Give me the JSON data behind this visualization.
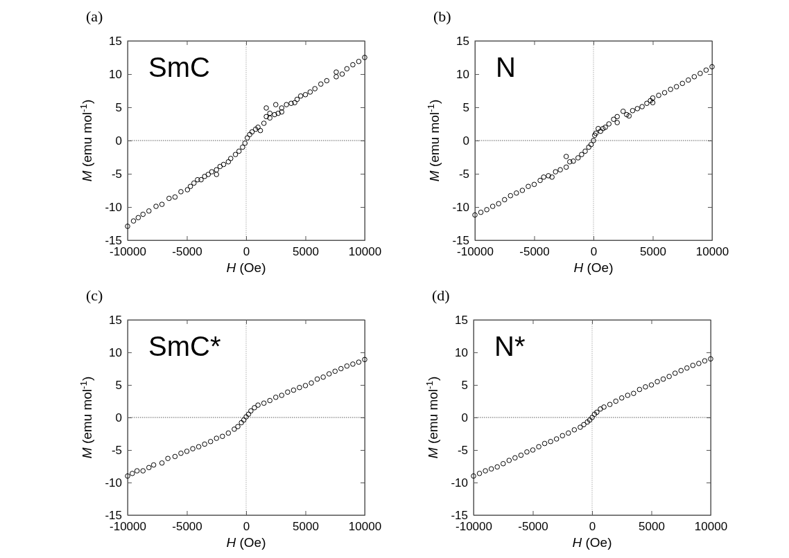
{
  "chart_data": [
    {
      "type": "scatter",
      "title": "(a)",
      "annotations": [
        "SmC"
      ],
      "xlabel": "H (Oe)",
      "ylabel": "M (emu mol$^{-1}$)",
      "xlim": [
        -10000,
        10000
      ],
      "ylim": [
        -15,
        15
      ],
      "xticks": [
        -10000,
        -5000,
        0,
        5000,
        10000
      ],
      "yticks": [
        -15,
        -10,
        -5,
        0,
        5,
        10,
        15
      ],
      "marker": "circle",
      "grid": false,
      "ref_lines": [
        {
          "axis": "x",
          "value": 0,
          "line_style": "dotted",
          "color": "#999999"
        },
        {
          "axis": "y",
          "value": 0,
          "line_style": "dotted",
          "color": "#333333"
        }
      ],
      "series": [
        {
          "color": "#000000",
          "x": [
            -10000,
            -9500,
            -9100,
            -8700,
            -8200,
            -7600,
            -7100,
            -6500,
            -6000,
            -5500,
            -4950,
            -4700,
            -4400,
            -4100,
            -3800,
            -3500,
            -3200,
            -2900,
            -2500,
            -2500,
            -2200,
            -1900,
            -1500,
            -1300,
            -900,
            -600,
            -300,
            -100,
            100,
            300,
            500,
            800,
            1000,
            1200,
            1500,
            1700,
            1700,
            2000,
            2000,
            2400,
            2500,
            2700,
            3000,
            3000,
            3400,
            3800,
            4100,
            4300,
            4600,
            5000,
            5400,
            5800,
            6300,
            6800,
            7600,
            7600,
            8100,
            8500,
            9000,
            9500,
            10000
          ],
          "values": [
            -12.9,
            -12.1,
            -11.6,
            -11.1,
            -10.6,
            -9.9,
            -9.6,
            -8.7,
            -8.5,
            -7.7,
            -7.4,
            -6.9,
            -6.4,
            -5.9,
            -5.9,
            -5.4,
            -5.1,
            -4.7,
            -4.4,
            -5.1,
            -3.9,
            -3.6,
            -3.2,
            -2.7,
            -2.1,
            -1.6,
            -1.0,
            -0.4,
            0.4,
            0.9,
            1.3,
            1.7,
            2.0,
            1.5,
            2.6,
            3.6,
            4.9,
            3.4,
            4.1,
            3.9,
            5.4,
            4.1,
            4.9,
            4.3,
            5.4,
            5.6,
            5.7,
            6.2,
            6.7,
            6.9,
            7.3,
            7.8,
            8.5,
            9.0,
            9.6,
            10.3,
            10.0,
            10.8,
            11.4,
            11.9,
            12.5
          ]
        }
      ]
    },
    {
      "type": "scatter",
      "title": "(b)",
      "annotations": [
        "N"
      ],
      "xlabel": "H (Oe)",
      "ylabel": "M (emu mol$^{-1}$)",
      "xlim": [
        -10000,
        10000
      ],
      "ylim": [
        -15,
        15
      ],
      "xticks": [
        -10000,
        -5000,
        0,
        5000,
        10000
      ],
      "yticks": [
        -15,
        -10,
        -5,
        0,
        5,
        10,
        15
      ],
      "marker": "circle",
      "grid": false,
      "ref_lines": [
        {
          "axis": "x",
          "value": 0,
          "line_style": "dotted",
          "color": "#999999"
        },
        {
          "axis": "y",
          "value": 0,
          "line_style": "dotted",
          "color": "#333333"
        }
      ],
      "series": [
        {
          "color": "#000000",
          "x": [
            -10000,
            -9500,
            -9000,
            -8500,
            -8000,
            -7500,
            -7000,
            -6500,
            -6000,
            -5500,
            -5000,
            -4500,
            -4200,
            -3800,
            -3500,
            -3200,
            -2800,
            -2300,
            -2300,
            -2000,
            -1700,
            -1300,
            -1000,
            -700,
            -400,
            -200,
            0,
            100,
            200,
            400,
            600,
            800,
            1000,
            1300,
            1700,
            2000,
            2000,
            2500,
            2800,
            3000,
            3300,
            3700,
            4100,
            4500,
            4800,
            5000,
            5000,
            5500,
            6000,
            6500,
            7000,
            7500,
            8000,
            8500,
            9000,
            9500,
            10000
          ],
          "values": [
            -11.2,
            -10.8,
            -10.4,
            -9.9,
            -9.5,
            -8.9,
            -8.3,
            -7.9,
            -7.5,
            -6.9,
            -6.6,
            -6.0,
            -5.5,
            -5.3,
            -5.5,
            -4.7,
            -4.4,
            -4.0,
            -2.4,
            -3.2,
            -3.1,
            -2.6,
            -2.1,
            -1.6,
            -1.0,
            -0.6,
            0,
            0.8,
            1.1,
            1.8,
            1.4,
            1.8,
            2.0,
            2.5,
            3.2,
            2.7,
            3.6,
            4.4,
            3.9,
            3.7,
            4.5,
            4.8,
            5.1,
            5.6,
            6.0,
            5.7,
            6.4,
            6.8,
            7.2,
            7.7,
            8.1,
            8.6,
            9.1,
            9.6,
            10.1,
            10.6,
            11.1
          ]
        }
      ]
    },
    {
      "type": "scatter",
      "title": "(c)",
      "annotations": [
        "SmC*"
      ],
      "xlabel": "H (Oe)",
      "ylabel": "M (emu mol$^{-1}$)",
      "xlim": [
        -10000,
        10000
      ],
      "ylim": [
        -15,
        15
      ],
      "xticks": [
        -10000,
        -5000,
        0,
        5000,
        10000
      ],
      "yticks": [
        -15,
        -10,
        -5,
        0,
        5,
        10,
        15
      ],
      "marker": "circle",
      "grid": false,
      "ref_lines": [
        {
          "axis": "x",
          "value": 0,
          "line_style": "dotted",
          "color": "#999999"
        },
        {
          "axis": "y",
          "value": 0,
          "line_style": "dotted",
          "color": "#333333"
        }
      ],
      "series": [
        {
          "color": "#000000",
          "x": [
            -10000,
            -9600,
            -9200,
            -8700,
            -8200,
            -7800,
            -7100,
            -6600,
            -6000,
            -5500,
            -5000,
            -4500,
            -4000,
            -3500,
            -3000,
            -2500,
            -2000,
            -1500,
            -1000,
            -700,
            -400,
            -200,
            0,
            200,
            400,
            700,
            1000,
            1500,
            2000,
            2500,
            3000,
            3500,
            4000,
            4500,
            5000,
            5500,
            6000,
            6500,
            7000,
            7500,
            8000,
            8500,
            9000,
            9500,
            10000
          ],
          "values": [
            -9.0,
            -8.6,
            -8.2,
            -8.2,
            -7.7,
            -7.3,
            -7.0,
            -6.3,
            -6.0,
            -5.5,
            -5.2,
            -4.8,
            -4.5,
            -4.1,
            -3.7,
            -3.2,
            -2.9,
            -2.4,
            -1.8,
            -1.4,
            -0.8,
            -0.4,
            0.1,
            0.5,
            1.0,
            1.5,
            1.9,
            2.2,
            2.6,
            3.1,
            3.4,
            3.9,
            4.2,
            4.6,
            4.9,
            5.3,
            5.9,
            6.2,
            6.7,
            7.1,
            7.5,
            7.9,
            8.2,
            8.5,
            8.9
          ]
        }
      ]
    },
    {
      "type": "scatter",
      "title": "(d)",
      "annotations": [
        "N*"
      ],
      "xlabel": "H (Oe)",
      "ylabel": "M (emu mol$^{-1}$)",
      "xlim": [
        -10000,
        10000
      ],
      "ylim": [
        -15,
        15
      ],
      "xticks": [
        -10000,
        -5000,
        0,
        5000,
        10000
      ],
      "yticks": [
        -15,
        -10,
        -5,
        0,
        5,
        10,
        15
      ],
      "marker": "circle",
      "grid": false,
      "ref_lines": [
        {
          "axis": "x",
          "value": 0,
          "line_style": "dotted",
          "color": "#999999"
        },
        {
          "axis": "y",
          "value": 0,
          "line_style": "dotted",
          "color": "#333333"
        }
      ],
      "series": [
        {
          "color": "#000000",
          "x": [
            -10000,
            -9500,
            -9000,
            -8500,
            -8000,
            -7500,
            -7000,
            -6500,
            -6000,
            -5500,
            -5000,
            -4500,
            -4000,
            -3500,
            -3000,
            -2500,
            -2000,
            -1500,
            -1000,
            -700,
            -400,
            -200,
            0,
            200,
            400,
            700,
            1000,
            1500,
            2000,
            2500,
            3000,
            3500,
            4000,
            4500,
            5000,
            5500,
            6000,
            6500,
            7000,
            7500,
            8000,
            8500,
            9000,
            9500,
            10000
          ],
          "values": [
            -9.0,
            -8.6,
            -8.2,
            -7.9,
            -7.6,
            -7.1,
            -6.6,
            -6.2,
            -5.8,
            -5.3,
            -5.0,
            -4.5,
            -4.0,
            -3.7,
            -3.3,
            -2.8,
            -2.4,
            -1.9,
            -1.5,
            -1.1,
            -0.7,
            -0.4,
            0,
            0.5,
            0.8,
            1.3,
            1.6,
            2.0,
            2.5,
            3.0,
            3.4,
            3.7,
            4.3,
            4.7,
            5.0,
            5.5,
            5.9,
            6.3,
            6.8,
            7.2,
            7.6,
            8.0,
            8.3,
            8.7,
            9.0
          ]
        }
      ]
    }
  ]
}
